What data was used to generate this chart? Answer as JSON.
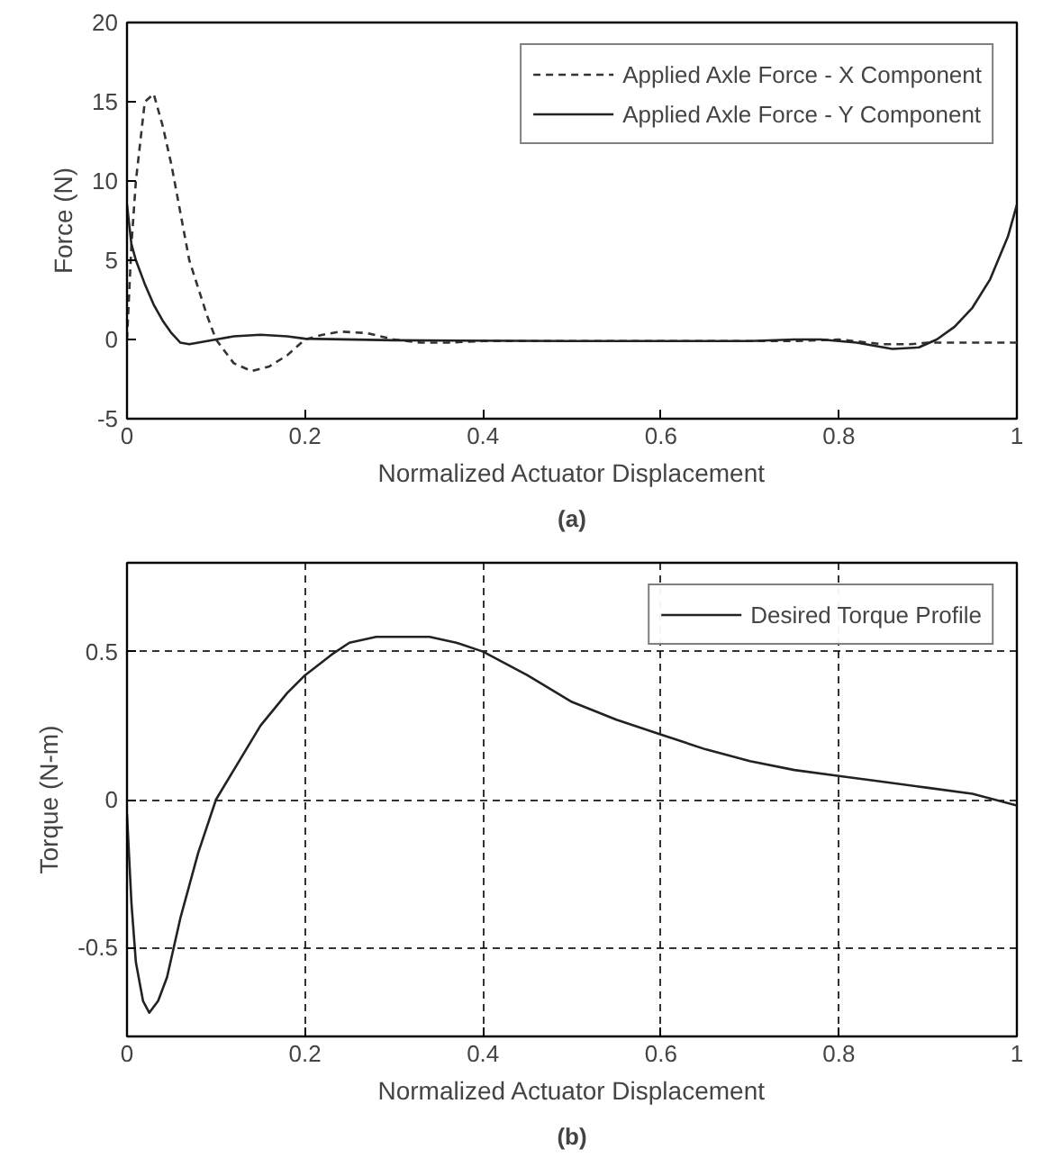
{
  "chart_data": [
    {
      "type": "line",
      "xlabel": "Normalized Actuator Displacement",
      "ylabel": "Force (N)",
      "annotations": [
        "(a)"
      ],
      "xlim": [
        0,
        1
      ],
      "ylim": [
        -5,
        20
      ],
      "xticks": [
        0,
        0.2,
        0.4,
        0.6,
        0.8,
        1
      ],
      "yticks": [
        -5,
        0,
        5,
        10,
        15,
        20
      ],
      "grid": false,
      "legend": "top right",
      "series": [
        {
          "name": "Applied Axle Force - X Component",
          "color": "#333333",
          "line_style": "dashed",
          "x": [
            0,
            0.005,
            0.01,
            0.02,
            0.03,
            0.04,
            0.05,
            0.07,
            0.09,
            0.1,
            0.12,
            0.14,
            0.16,
            0.18,
            0.2,
            0.22,
            0.24,
            0.27,
            0.3,
            0.33,
            0.36,
            0.4,
            0.5,
            0.6,
            0.7,
            0.75,
            0.8,
            0.85,
            0.88,
            0.9,
            0.95,
            1
          ],
          "values": [
            0,
            6,
            10,
            15,
            15.5,
            13.5,
            11,
            5,
            1.5,
            0,
            -1.5,
            -2,
            -1.7,
            -1,
            0,
            0.3,
            0.5,
            0.4,
            0,
            -0.2,
            -0.2,
            -0.1,
            -0.1,
            -0.1,
            -0.1,
            -0.1,
            0,
            -0.3,
            -0.3,
            -0.2,
            -0.2,
            -0.2
          ]
        },
        {
          "name": "Applied Axle Force - Y Component",
          "color": "#222222",
          "line_style": "solid",
          "x": [
            0,
            0.005,
            0.01,
            0.02,
            0.03,
            0.04,
            0.05,
            0.06,
            0.07,
            0.08,
            0.1,
            0.12,
            0.15,
            0.18,
            0.2,
            0.3,
            0.5,
            0.7,
            0.75,
            0.78,
            0.82,
            0.86,
            0.89,
            0.91,
            0.93,
            0.95,
            0.97,
            0.99,
            1
          ],
          "values": [
            8.5,
            6,
            5,
            3.5,
            2.2,
            1.2,
            0.4,
            -0.2,
            -0.3,
            -0.2,
            0,
            0.2,
            0.3,
            0.2,
            0.05,
            -0.05,
            -0.1,
            -0.1,
            0,
            0,
            -0.2,
            -0.6,
            -0.5,
            0,
            0.8,
            2,
            3.8,
            6.5,
            8.5
          ]
        }
      ]
    },
    {
      "type": "line",
      "xlabel": "Normalized Actuator Displacement",
      "ylabel": "Torque (N-m)",
      "annotations": [
        "(b)"
      ],
      "xlim": [
        0,
        1
      ],
      "ylim": [
        -0.8,
        0.8
      ],
      "xticks": [
        0,
        0.2,
        0.4,
        0.6,
        0.8,
        1
      ],
      "yticks": [
        -0.5,
        0,
        0.5
      ],
      "grid": true,
      "legend": "top right",
      "series": [
        {
          "name": "Desired Torque Profile",
          "color": "#222222",
          "line_style": "solid",
          "x": [
            0,
            0.005,
            0.01,
            0.018,
            0.025,
            0.035,
            0.045,
            0.06,
            0.08,
            0.1,
            0.12,
            0.15,
            0.18,
            0.2,
            0.23,
            0.25,
            0.28,
            0.31,
            0.34,
            0.37,
            0.4,
            0.45,
            0.5,
            0.55,
            0.6,
            0.65,
            0.7,
            0.75,
            0.8,
            0.85,
            0.9,
            0.95,
            1
          ],
          "values": [
            -0.05,
            -0.35,
            -0.55,
            -0.68,
            -0.72,
            -0.68,
            -0.6,
            -0.4,
            -0.18,
            0,
            0.1,
            0.25,
            0.36,
            0.42,
            0.49,
            0.53,
            0.55,
            0.55,
            0.55,
            0.53,
            0.5,
            0.42,
            0.33,
            0.27,
            0.22,
            0.17,
            0.13,
            0.1,
            0.08,
            0.06,
            0.04,
            0.02,
            -0.02
          ]
        }
      ]
    }
  ]
}
